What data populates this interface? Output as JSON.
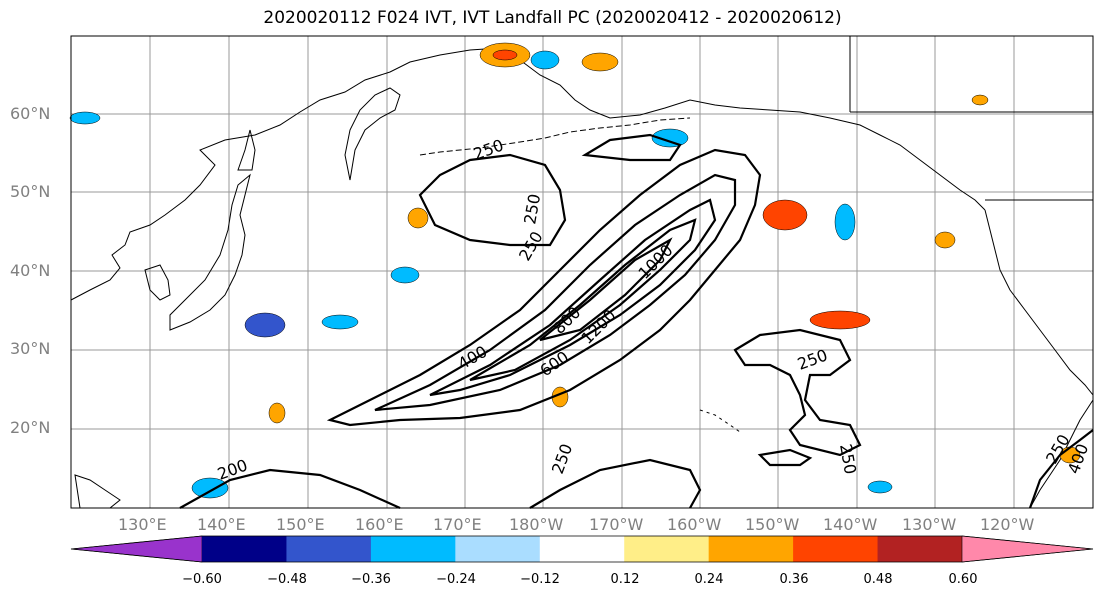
{
  "title": "2020020112 F024 IVT, IVT Landfall PC (2020020412 - 2020020612)",
  "map": {
    "lat_labels": [
      "60°N",
      "50°N",
      "40°N",
      "30°N",
      "20°N"
    ],
    "lon_labels": [
      "130°E",
      "140°E",
      "150°E",
      "160°E",
      "170°E",
      "180°W",
      "170°W",
      "160°W",
      "150°W",
      "140°W",
      "130°W",
      "120°W"
    ],
    "contour_labels": [
      "250",
      "250",
      "250",
      "400",
      "600",
      "800",
      "1000",
      "1200",
      "250",
      "250",
      "250",
      "250",
      "400",
      "200"
    ],
    "colors": {
      "coastline": "#000000",
      "grid": "#999999",
      "contour": "#000000"
    }
  },
  "colorbar": {
    "ticks": [
      "−0.60",
      "−0.48",
      "−0.36",
      "−0.24",
      "−0.12",
      "0.12",
      "0.24",
      "0.36",
      "0.48",
      "0.60"
    ],
    "colors": [
      "#9933cc",
      "#000088",
      "#3355cc",
      "#00bbff",
      "#aaddff",
      "#ffffff",
      "#ffee88",
      "#ffa500",
      "#ff4400",
      "#b22222",
      "#ff88aa"
    ]
  }
}
